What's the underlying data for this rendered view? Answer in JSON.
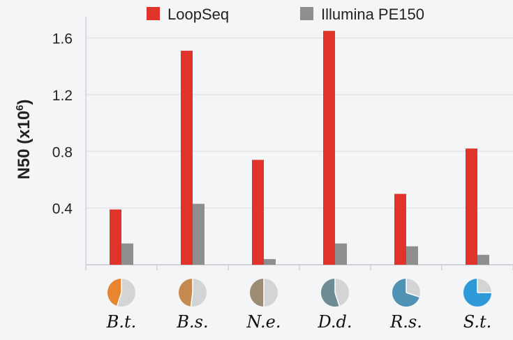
{
  "chart_data": {
    "type": "bar",
    "categories": [
      "B.t.",
      "B.s.",
      "N.e.",
      "D.d.",
      "R.s.",
      "S.t."
    ],
    "series": [
      {
        "name": "LoopSeq",
        "color": "#e0342b",
        "values": [
          0.39,
          1.51,
          0.74,
          1.65,
          0.5,
          0.82
        ]
      },
      {
        "name": "Illumina PE150",
        "color": "#8e8e8e",
        "values": [
          0.15,
          0.43,
          0.04,
          0.15,
          0.13,
          0.07
        ]
      }
    ],
    "ylabel_main": "N50 (x10",
    "ylabel_exp": "6",
    "ylabel_close": ")",
    "yticks": [
      "0.4",
      "0.8",
      "1.2",
      "1.6"
    ],
    "ylim": [
      0,
      1.75
    ],
    "grid": true,
    "legend_position": "top",
    "pie_markers": [
      {
        "fraction": 0.45,
        "color": "#e9852e"
      },
      {
        "fraction": 0.48,
        "color": "#c58a4f"
      },
      {
        "fraction": 0.5,
        "color": "#9d8c74"
      },
      {
        "fraction": 0.55,
        "color": "#6f8c92"
      },
      {
        "fraction": 0.7,
        "color": "#4f92b3"
      },
      {
        "fraction": 0.75,
        "color": "#2f9ad8"
      }
    ],
    "pie_background_color": "#d2d4d6"
  }
}
